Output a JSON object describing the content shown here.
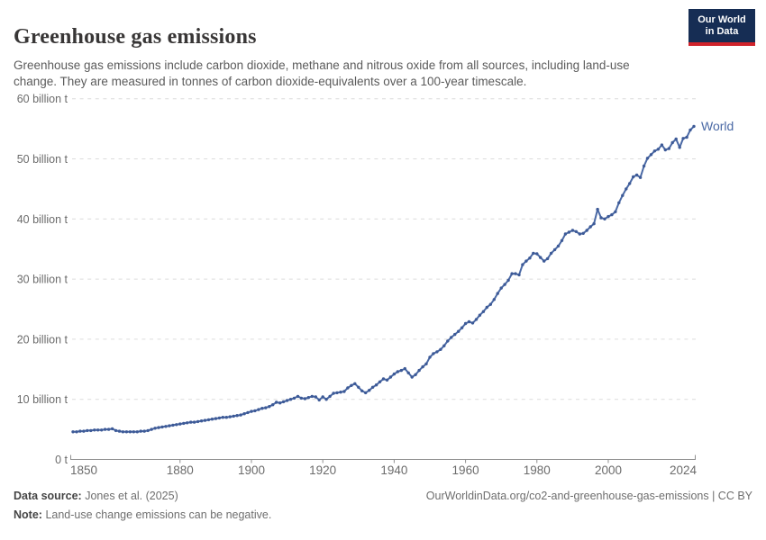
{
  "header": {
    "title": "Greenhouse gas emissions",
    "subtitle": "Greenhouse gas emissions include carbon dioxide, methane and nitrous oxide from all sources, including land-use change. They are measured in tonnes of carbon dioxide-equivalents over a 100-year timescale.",
    "logo": {
      "line1": "Our World",
      "line2": "in Data"
    }
  },
  "colors": {
    "line": "#4a69a5",
    "dot": "#3d5a97",
    "grid": "#dcdcdc",
    "axis": "#8f8f8f",
    "tick_label": "#6b6b6b",
    "logo_navy": "#162d54",
    "logo_red": "#d0232b"
  },
  "chart_data": {
    "type": "line",
    "title": "Greenhouse gas emissions",
    "xlabel": "",
    "ylabel": "",
    "xlim": [
      1850,
      2024
    ],
    "ylim": [
      0,
      60
    ],
    "grid": "horizontal-dashed",
    "legend_position": "end-of-line",
    "x_ticks": [
      1850,
      1880,
      1900,
      1920,
      1940,
      1960,
      1980,
      2000,
      2024
    ],
    "y_ticks": [
      {
        "value": 0,
        "label": "0 t"
      },
      {
        "value": 10,
        "label": "10 billion t"
      },
      {
        "value": 20,
        "label": "20 billion t"
      },
      {
        "value": 30,
        "label": "30 billion t"
      },
      {
        "value": 40,
        "label": "40 billion t"
      },
      {
        "value": 50,
        "label": "50 billion t"
      },
      {
        "value": 60,
        "label": "60 billion t"
      }
    ],
    "series": [
      {
        "name": "World",
        "unit": "billion t",
        "start_year": 1850,
        "end_year": 2024,
        "values": [
          4.6,
          4.6,
          4.7,
          4.7,
          4.8,
          4.8,
          4.9,
          4.9,
          4.9,
          5.0,
          5.0,
          5.1,
          4.8,
          4.7,
          4.6,
          4.6,
          4.6,
          4.6,
          4.6,
          4.7,
          4.7,
          4.8,
          5.0,
          5.2,
          5.3,
          5.4,
          5.5,
          5.6,
          5.7,
          5.8,
          5.9,
          6.0,
          6.1,
          6.2,
          6.2,
          6.3,
          6.4,
          6.5,
          6.6,
          6.7,
          6.8,
          6.9,
          7.0,
          7.0,
          7.1,
          7.2,
          7.3,
          7.4,
          7.6,
          7.8,
          8.0,
          8.1,
          8.3,
          8.5,
          8.6,
          8.8,
          9.1,
          9.5,
          9.4,
          9.6,
          9.8,
          10.0,
          10.2,
          10.5,
          10.2,
          10.1,
          10.3,
          10.5,
          10.4,
          9.9,
          10.4,
          10.0,
          10.5,
          11.0,
          11.1,
          11.2,
          11.3,
          11.9,
          12.3,
          12.6,
          12.0,
          11.4,
          11.1,
          11.5,
          12.0,
          12.4,
          12.9,
          13.4,
          13.2,
          13.7,
          14.2,
          14.6,
          14.8,
          15.1,
          14.4,
          13.7,
          14.1,
          14.8,
          15.4,
          15.9,
          17.0,
          17.6,
          17.9,
          18.3,
          18.9,
          19.7,
          20.3,
          20.8,
          21.3,
          21.9,
          22.6,
          22.9,
          22.7,
          23.3,
          24.0,
          24.6,
          25.3,
          25.8,
          26.6,
          27.6,
          28.5,
          29.1,
          29.8,
          30.9,
          30.9,
          30.7,
          32.4,
          33.0,
          33.5,
          34.3,
          34.2,
          33.6,
          33.0,
          33.4,
          34.3,
          34.9,
          35.5,
          36.4,
          37.5,
          37.8,
          38.1,
          37.9,
          37.5,
          37.6,
          38.1,
          38.7,
          39.2,
          41.6,
          40.2,
          40.0,
          40.4,
          40.7,
          41.2,
          42.7,
          43.9,
          45.0,
          45.9,
          47.0,
          47.3,
          46.9,
          48.8,
          50.1,
          50.7,
          51.3,
          51.6,
          52.3,
          51.5,
          51.7,
          52.7,
          53.3,
          51.9,
          53.4,
          53.6,
          54.8,
          55.4
        ]
      }
    ]
  },
  "footer": {
    "datasource_label": "Data source:",
    "datasource_value": "Jones et al. (2025)",
    "note_label": "Note:",
    "note_value": "Land-use change emissions can be negative.",
    "url": "OurWorldinData.org/co2-and-greenhouse-gas-emissions | CC BY"
  }
}
